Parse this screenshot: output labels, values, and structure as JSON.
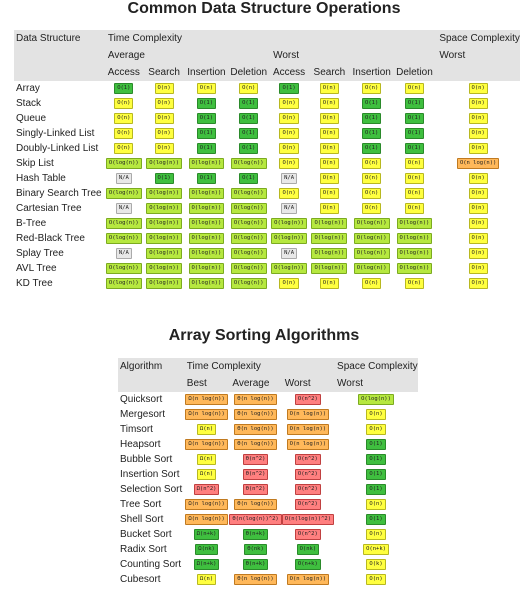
{
  "title1": "Common Data Structure Operations",
  "title2": "Array Sorting Algorithms",
  "ds": {
    "h_name": "Data Structure",
    "h_time": "Time Complexity",
    "h_space": "Space Complexity",
    "h_avg": "Average",
    "h_worst": "Worst",
    "h_space_worst": "Worst",
    "ops": [
      "Access",
      "Search",
      "Insertion",
      "Deletion",
      "Access",
      "Search",
      "Insertion",
      "Deletion"
    ],
    "rows": [
      {
        "name": "Array",
        "cells": [
          [
            "O(1)",
            "g"
          ],
          [
            "O(n)",
            "y"
          ],
          [
            "O(n)",
            "y"
          ],
          [
            "O(n)",
            "y"
          ],
          [
            "O(1)",
            "g"
          ],
          [
            "O(n)",
            "y"
          ],
          [
            "O(n)",
            "y"
          ],
          [
            "O(n)",
            "y"
          ],
          [
            "O(n)",
            "y"
          ]
        ]
      },
      {
        "name": "Stack",
        "cells": [
          [
            "O(n)",
            "y"
          ],
          [
            "O(n)",
            "y"
          ],
          [
            "O(1)",
            "g"
          ],
          [
            "O(1)",
            "g"
          ],
          [
            "O(n)",
            "y"
          ],
          [
            "O(n)",
            "y"
          ],
          [
            "O(1)",
            "g"
          ],
          [
            "O(1)",
            "g"
          ],
          [
            "O(n)",
            "y"
          ]
        ]
      },
      {
        "name": "Queue",
        "cells": [
          [
            "O(n)",
            "y"
          ],
          [
            "O(n)",
            "y"
          ],
          [
            "O(1)",
            "g"
          ],
          [
            "O(1)",
            "g"
          ],
          [
            "O(n)",
            "y"
          ],
          [
            "O(n)",
            "y"
          ],
          [
            "O(1)",
            "g"
          ],
          [
            "O(1)",
            "g"
          ],
          [
            "O(n)",
            "y"
          ]
        ]
      },
      {
        "name": "Singly-Linked List",
        "cells": [
          [
            "O(n)",
            "y"
          ],
          [
            "O(n)",
            "y"
          ],
          [
            "O(1)",
            "g"
          ],
          [
            "O(1)",
            "g"
          ],
          [
            "O(n)",
            "y"
          ],
          [
            "O(n)",
            "y"
          ],
          [
            "O(1)",
            "g"
          ],
          [
            "O(1)",
            "g"
          ],
          [
            "O(n)",
            "y"
          ]
        ]
      },
      {
        "name": "Doubly-Linked List",
        "cells": [
          [
            "O(n)",
            "y"
          ],
          [
            "O(n)",
            "y"
          ],
          [
            "O(1)",
            "g"
          ],
          [
            "O(1)",
            "g"
          ],
          [
            "O(n)",
            "y"
          ],
          [
            "O(n)",
            "y"
          ],
          [
            "O(1)",
            "g"
          ],
          [
            "O(1)",
            "g"
          ],
          [
            "O(n)",
            "y"
          ]
        ]
      },
      {
        "name": "Skip List",
        "cells": [
          [
            "O(log(n))",
            "lg"
          ],
          [
            "O(log(n))",
            "lg"
          ],
          [
            "O(log(n))",
            "lg"
          ],
          [
            "O(log(n))",
            "lg"
          ],
          [
            "O(n)",
            "y"
          ],
          [
            "O(n)",
            "y"
          ],
          [
            "O(n)",
            "y"
          ],
          [
            "O(n)",
            "y"
          ],
          [
            "O(n log(n))",
            "o"
          ]
        ]
      },
      {
        "name": "Hash Table",
        "cells": [
          [
            "N/A",
            "gr"
          ],
          [
            "O(1)",
            "g"
          ],
          [
            "O(1)",
            "g"
          ],
          [
            "O(1)",
            "g"
          ],
          [
            "N/A",
            "gr"
          ],
          [
            "O(n)",
            "y"
          ],
          [
            "O(n)",
            "y"
          ],
          [
            "O(n)",
            "y"
          ],
          [
            "O(n)",
            "y"
          ]
        ]
      },
      {
        "name": "Binary Search Tree",
        "cells": [
          [
            "O(log(n))",
            "lg"
          ],
          [
            "O(log(n))",
            "lg"
          ],
          [
            "O(log(n))",
            "lg"
          ],
          [
            "O(log(n))",
            "lg"
          ],
          [
            "O(n)",
            "y"
          ],
          [
            "O(n)",
            "y"
          ],
          [
            "O(n)",
            "y"
          ],
          [
            "O(n)",
            "y"
          ],
          [
            "O(n)",
            "y"
          ]
        ]
      },
      {
        "name": "Cartesian Tree",
        "cells": [
          [
            "N/A",
            "gr"
          ],
          [
            "O(log(n))",
            "lg"
          ],
          [
            "O(log(n))",
            "lg"
          ],
          [
            "O(log(n))",
            "lg"
          ],
          [
            "N/A",
            "gr"
          ],
          [
            "O(n)",
            "y"
          ],
          [
            "O(n)",
            "y"
          ],
          [
            "O(n)",
            "y"
          ],
          [
            "O(n)",
            "y"
          ]
        ]
      },
      {
        "name": "B-Tree",
        "cells": [
          [
            "O(log(n))",
            "lg"
          ],
          [
            "O(log(n))",
            "lg"
          ],
          [
            "O(log(n))",
            "lg"
          ],
          [
            "O(log(n))",
            "lg"
          ],
          [
            "O(log(n))",
            "lg"
          ],
          [
            "O(log(n))",
            "lg"
          ],
          [
            "O(log(n))",
            "lg"
          ],
          [
            "O(log(n))",
            "lg"
          ],
          [
            "O(n)",
            "y"
          ]
        ]
      },
      {
        "name": "Red-Black Tree",
        "cells": [
          [
            "O(log(n))",
            "lg"
          ],
          [
            "O(log(n))",
            "lg"
          ],
          [
            "O(log(n))",
            "lg"
          ],
          [
            "O(log(n))",
            "lg"
          ],
          [
            "O(log(n))",
            "lg"
          ],
          [
            "O(log(n))",
            "lg"
          ],
          [
            "O(log(n))",
            "lg"
          ],
          [
            "O(log(n))",
            "lg"
          ],
          [
            "O(n)",
            "y"
          ]
        ]
      },
      {
        "name": "Splay Tree",
        "cells": [
          [
            "N/A",
            "gr"
          ],
          [
            "O(log(n))",
            "lg"
          ],
          [
            "O(log(n))",
            "lg"
          ],
          [
            "O(log(n))",
            "lg"
          ],
          [
            "N/A",
            "gr"
          ],
          [
            "O(log(n))",
            "lg"
          ],
          [
            "O(log(n))",
            "lg"
          ],
          [
            "O(log(n))",
            "lg"
          ],
          [
            "O(n)",
            "y"
          ]
        ]
      },
      {
        "name": "AVL Tree",
        "cells": [
          [
            "O(log(n))",
            "lg"
          ],
          [
            "O(log(n))",
            "lg"
          ],
          [
            "O(log(n))",
            "lg"
          ],
          [
            "O(log(n))",
            "lg"
          ],
          [
            "O(log(n))",
            "lg"
          ],
          [
            "O(log(n))",
            "lg"
          ],
          [
            "O(log(n))",
            "lg"
          ],
          [
            "O(log(n))",
            "lg"
          ],
          [
            "O(n)",
            "y"
          ]
        ]
      },
      {
        "name": "KD Tree",
        "cells": [
          [
            "O(log(n))",
            "lg"
          ],
          [
            "O(log(n))",
            "lg"
          ],
          [
            "O(log(n))",
            "lg"
          ],
          [
            "O(log(n))",
            "lg"
          ],
          [
            "O(n)",
            "y"
          ],
          [
            "O(n)",
            "y"
          ],
          [
            "O(n)",
            "y"
          ],
          [
            "O(n)",
            "y"
          ],
          [
            "O(n)",
            "y"
          ]
        ]
      }
    ]
  },
  "sort": {
    "h_name": "Algorithm",
    "h_time": "Time Complexity",
    "h_space": "Space Complexity",
    "h_best": "Best",
    "h_avg": "Average",
    "h_worst": "Worst",
    "h_space_worst": "Worst",
    "rows": [
      {
        "name": "Quicksort",
        "cells": [
          [
            "Ω(n log(n))",
            "o"
          ],
          [
            "Θ(n log(n))",
            "o"
          ],
          [
            "O(n^2)",
            "r"
          ],
          [
            "O(log(n))",
            "lg"
          ]
        ]
      },
      {
        "name": "Mergesort",
        "cells": [
          [
            "Ω(n log(n))",
            "o"
          ],
          [
            "Θ(n log(n))",
            "o"
          ],
          [
            "O(n log(n))",
            "o"
          ],
          [
            "O(n)",
            "y"
          ]
        ]
      },
      {
        "name": "Timsort",
        "cells": [
          [
            "Ω(n)",
            "y"
          ],
          [
            "Θ(n log(n))",
            "o"
          ],
          [
            "O(n log(n))",
            "o"
          ],
          [
            "O(n)",
            "y"
          ]
        ]
      },
      {
        "name": "Heapsort",
        "cells": [
          [
            "Ω(n log(n))",
            "o"
          ],
          [
            "Θ(n log(n))",
            "o"
          ],
          [
            "O(n log(n))",
            "o"
          ],
          [
            "O(1)",
            "g"
          ]
        ]
      },
      {
        "name": "Bubble Sort",
        "cells": [
          [
            "Ω(n)",
            "y"
          ],
          [
            "Θ(n^2)",
            "r"
          ],
          [
            "O(n^2)",
            "r"
          ],
          [
            "O(1)",
            "g"
          ]
        ]
      },
      {
        "name": "Insertion Sort",
        "cells": [
          [
            "Ω(n)",
            "y"
          ],
          [
            "Θ(n^2)",
            "r"
          ],
          [
            "O(n^2)",
            "r"
          ],
          [
            "O(1)",
            "g"
          ]
        ]
      },
      {
        "name": "Selection Sort",
        "cells": [
          [
            "Ω(n^2)",
            "r"
          ],
          [
            "Θ(n^2)",
            "r"
          ],
          [
            "O(n^2)",
            "r"
          ],
          [
            "O(1)",
            "g"
          ]
        ]
      },
      {
        "name": "Tree Sort",
        "cells": [
          [
            "Ω(n log(n))",
            "o"
          ],
          [
            "Θ(n log(n))",
            "o"
          ],
          [
            "O(n^2)",
            "r"
          ],
          [
            "O(n)",
            "y"
          ]
        ]
      },
      {
        "name": "Shell Sort",
        "cells": [
          [
            "Ω(n log(n))",
            "o"
          ],
          [
            "Θ(n(log(n))^2)",
            "r"
          ],
          [
            "O(n(log(n))^2)",
            "r"
          ],
          [
            "O(1)",
            "g"
          ]
        ]
      },
      {
        "name": "Bucket Sort",
        "cells": [
          [
            "Ω(n+k)",
            "g"
          ],
          [
            "Θ(n+k)",
            "g"
          ],
          [
            "O(n^2)",
            "r"
          ],
          [
            "O(n)",
            "y"
          ]
        ]
      },
      {
        "name": "Radix Sort",
        "cells": [
          [
            "Ω(nk)",
            "g"
          ],
          [
            "Θ(nk)",
            "g"
          ],
          [
            "O(nk)",
            "g"
          ],
          [
            "O(n+k)",
            "y"
          ]
        ]
      },
      {
        "name": "Counting Sort",
        "cells": [
          [
            "Ω(n+k)",
            "g"
          ],
          [
            "Θ(n+k)",
            "g"
          ],
          [
            "O(n+k)",
            "g"
          ],
          [
            "O(k)",
            "y"
          ]
        ]
      },
      {
        "name": "Cubesort",
        "cells": [
          [
            "Ω(n)",
            "y"
          ],
          [
            "Θ(n log(n))",
            "o"
          ],
          [
            "O(n log(n))",
            "o"
          ],
          [
            "O(n)",
            "y"
          ]
        ]
      }
    ]
  }
}
